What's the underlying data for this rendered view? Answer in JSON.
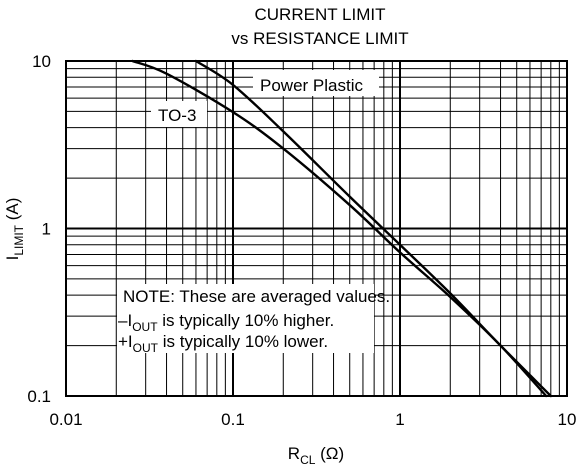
{
  "chart_data": {
    "type": "line",
    "title": "CURRENT LIMIT",
    "subtitle": "vs RESISTANCE LIMIT",
    "xlabel": {
      "main": "R",
      "subscript": "CL",
      "suffix": " (Ω)"
    },
    "ylabel": {
      "main": "I",
      "subscript": "LIMIT",
      "suffix": " (A)"
    },
    "x_scale": "log",
    "y_scale": "log",
    "xlim": [
      0.01,
      10
    ],
    "ylim": [
      0.1,
      10
    ],
    "grid": true,
    "x_ticks": [
      {
        "value": 0.01,
        "label": "0.01"
      },
      {
        "value": 0.1,
        "label": "0.1"
      },
      {
        "value": 1,
        "label": "1"
      },
      {
        "value": 10,
        "label": "10"
      }
    ],
    "y_ticks": [
      {
        "value": 0.1,
        "label": "0.1"
      },
      {
        "value": 1,
        "label": "1"
      },
      {
        "value": 10,
        "label": "10"
      }
    ],
    "series": [
      {
        "name": "Power Plastic",
        "x": [
          0.06,
          0.1,
          0.2,
          0.5,
          1.0,
          2.0,
          4.0,
          8.0
        ],
        "y": [
          10,
          7.2,
          3.8,
          1.55,
          0.8,
          0.41,
          0.2,
          0.1
        ]
      },
      {
        "name": "TO-3",
        "x": [
          0.025,
          0.04,
          0.1,
          0.2,
          0.5,
          1.0,
          2.0,
          4.0,
          7.5
        ],
        "y": [
          10,
          8.4,
          4.95,
          3.0,
          1.38,
          0.72,
          0.39,
          0.2,
          0.1
        ]
      }
    ],
    "note": {
      "line1": "NOTE: These are averaged values.",
      "line2_prefix": "–I",
      "line2_subscript": "OUT",
      "line2_suffix": " is typically 10% higher.",
      "line3_prefix": "+I",
      "line3_subscript": "OUT",
      "line3_suffix": " is typically 10% lower."
    }
  }
}
